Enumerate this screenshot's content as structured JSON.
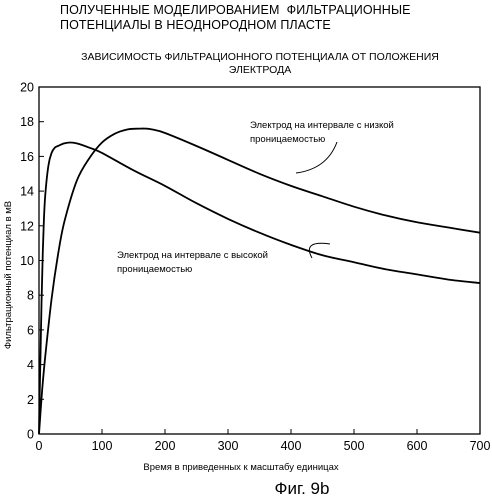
{
  "header": {
    "line1": "ПОЛУЧЕННЫЕ МОДЕЛИРОВАНИЕМ  ФИЛЬТРАЦИОННЫЕ",
    "line2": "ПОТЕНЦИАЛЫ В НЕОДНОРОДНОМ ПЛАСТЕ"
  },
  "figure_label": "Фиг. 9b",
  "chart_data": {
    "type": "line",
    "title": "ЗАВИСИМОСТЬ ФИЛЬТРАЦИОННОГО ПОТЕНЦИАЛА ОТ ПОЛОЖЕНИЯ\nЭЛЕКТРОДА",
    "xlabel": "Время в приведенных к масштабу единицах",
    "ylabel": "Фильтрационный потенциал в мВ",
    "xlim": [
      0,
      700
    ],
    "ylim": [
      0,
      20
    ],
    "xticks": [
      0,
      100,
      200,
      300,
      400,
      500,
      600,
      700
    ],
    "yticks": [
      0,
      2,
      4,
      6,
      8,
      10,
      12,
      14,
      16,
      18,
      20
    ],
    "grid": false,
    "legend": "none",
    "series": [
      {
        "annotation_lines": [
          "Электрод на интервале с низкой",
          "проницаемостью"
        ],
        "annotation_anchor": [
          420,
          15.6
        ],
        "x": [
          0,
          5,
          10,
          20,
          30,
          40,
          60,
          80,
          100,
          120,
          140,
          160,
          170,
          180,
          200,
          250,
          300,
          350,
          400,
          450,
          500,
          550,
          600,
          650,
          700
        ],
        "y": [
          0,
          2.5,
          4.5,
          7.8,
          10.3,
          12.2,
          14.6,
          15.9,
          16.8,
          17.3,
          17.55,
          17.6,
          17.6,
          17.55,
          17.35,
          16.6,
          15.8,
          15.0,
          14.3,
          13.7,
          13.1,
          12.6,
          12.2,
          11.9,
          11.6
        ]
      },
      {
        "annotation_lines": [
          "Электрод на интервале с высокой",
          "проницаемостью"
        ],
        "annotation_anchor": [
          433,
          10.5
        ],
        "x": [
          0,
          2,
          4,
          6,
          8,
          10,
          15,
          20,
          25,
          30,
          40,
          50,
          60,
          80,
          100,
          150,
          200,
          250,
          300,
          350,
          400,
          450,
          500,
          550,
          600,
          650,
          700
        ],
        "y": [
          0,
          4.0,
          7.5,
          10.5,
          12.5,
          13.8,
          15.5,
          16.2,
          16.5,
          16.6,
          16.75,
          16.8,
          16.75,
          16.5,
          16.2,
          15.2,
          14.3,
          13.3,
          12.4,
          11.6,
          10.9,
          10.3,
          9.9,
          9.5,
          9.2,
          8.9,
          8.7
        ]
      }
    ]
  }
}
